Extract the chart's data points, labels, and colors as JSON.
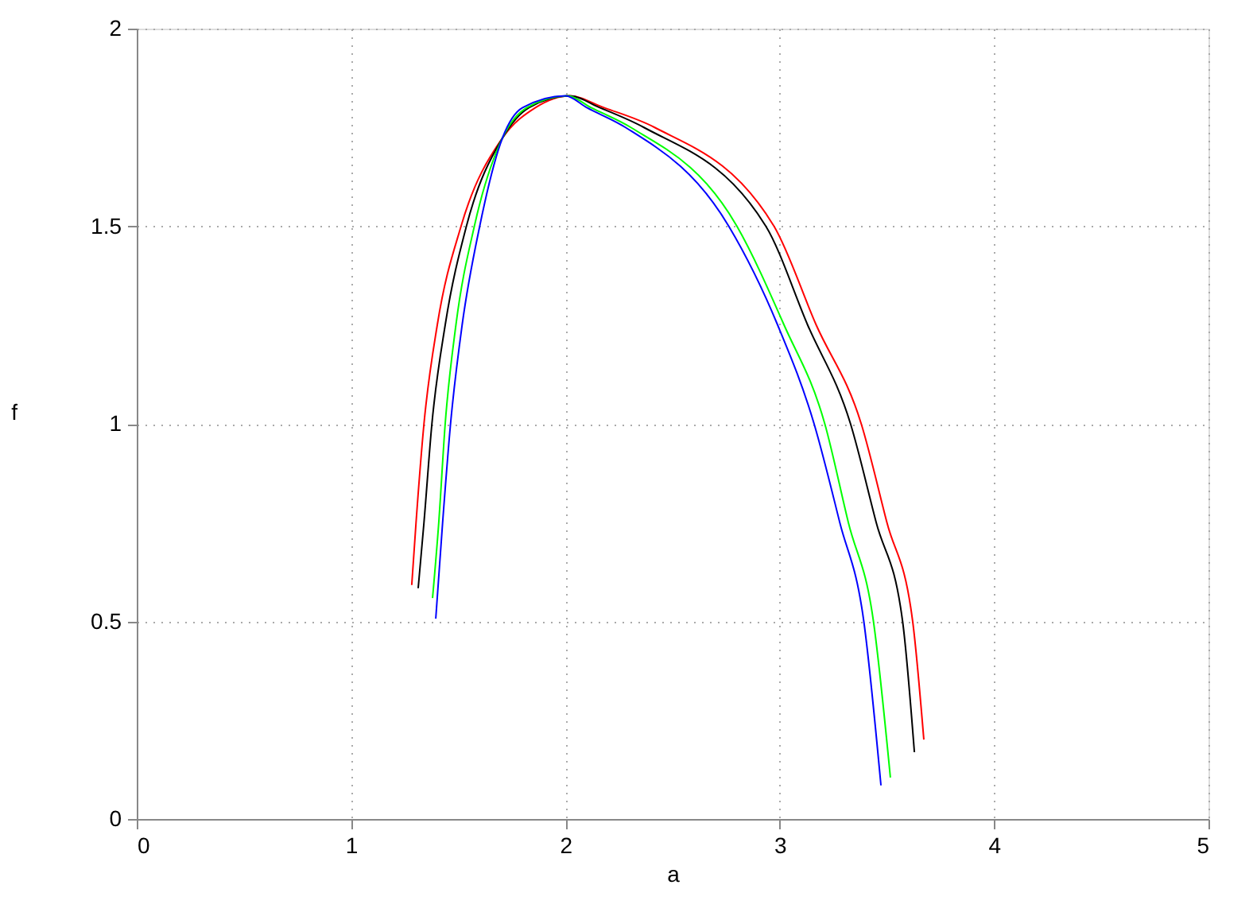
{
  "chart_data": {
    "type": "line",
    "xlabel": "a",
    "ylabel": "f",
    "xlim": [
      0,
      5
    ],
    "ylim": [
      0,
      2
    ],
    "xticks": [
      0,
      1,
      2,
      3,
      4,
      5
    ],
    "yticks": [
      0,
      {
        "value": 0.5,
        "label": "0.5"
      },
      1,
      {
        "value": 1.5,
        "label": "1.5"
      },
      2
    ],
    "grid": true,
    "marker": "none",
    "line_style": "solid",
    "series": [
      {
        "color": "#ff0000",
        "x": [
          1.283,
          1.303,
          1.34,
          1.402,
          1.513,
          1.706,
          1.86,
          2.02,
          2.18,
          2.416,
          2.973,
          3.17,
          3.38,
          3.5,
          3.62,
          3.672
        ],
        "values": [
          0.592,
          0.75,
          1.0,
          1.25,
          1.5,
          1.723,
          1.8,
          1.83,
          1.8,
          1.75,
          1.5,
          1.25,
          1.0,
          0.75,
          0.5,
          0.201
        ]
      },
      {
        "color": "#000000",
        "x": [
          1.313,
          1.34,
          1.377,
          1.439,
          1.538,
          1.706,
          1.83,
          2.02,
          2.16,
          2.366,
          2.935,
          3.13,
          3.33,
          3.45,
          3.573,
          3.628
        ],
        "values": [
          0.584,
          0.75,
          1.0,
          1.25,
          1.5,
          1.723,
          1.8,
          1.83,
          1.8,
          1.75,
          1.5,
          1.25,
          1.0,
          0.75,
          0.5,
          0.169
        ]
      },
      {
        "color": "#00ff00",
        "x": [
          1.38,
          1.409,
          1.439,
          1.489,
          1.575,
          1.706,
          1.82,
          2.01,
          2.12,
          2.305,
          2.8,
          3.02,
          3.21,
          3.32,
          3.437,
          3.516
        ],
        "values": [
          0.559,
          0.75,
          1.0,
          1.25,
          1.5,
          1.723,
          1.8,
          1.83,
          1.8,
          1.75,
          1.5,
          1.25,
          1.0,
          0.75,
          0.5,
          0.105
        ]
      },
      {
        "color": "#0000ff",
        "x": [
          1.395,
          1.427,
          1.464,
          1.518,
          1.6,
          1.706,
          1.8,
          2.0,
          2.1,
          2.28,
          2.762,
          2.99,
          3.16,
          3.28,
          3.392,
          3.472
        ],
        "values": [
          0.507,
          0.75,
          1.0,
          1.25,
          1.5,
          1.723,
          1.8,
          1.83,
          1.8,
          1.75,
          1.5,
          1.25,
          1.0,
          0.75,
          0.5,
          0.085
        ]
      }
    ]
  }
}
